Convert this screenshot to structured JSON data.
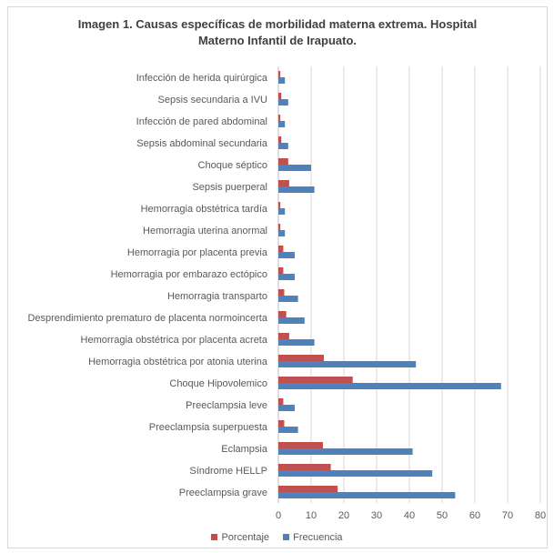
{
  "chart_data": {
    "type": "bar",
    "orientation": "horizontal",
    "title": "Imagen 1. Causas  específicas de morbilidad materna extrema. Hospital Materno Infantil de Irapuato.",
    "title_lines": [
      "Imagen 1. Causas  específicas de morbilidad materna extrema. Hospital",
      "Materno Infantil de Irapuato."
    ],
    "categories": [
      "Infección de herida quirúrgica",
      "Sepsis secundaria a IVU",
      "Infección de pared abdominal",
      "Sepsis abdominal secundaria",
      "Choque séptico",
      "Sepsis puerperal",
      "Hemorragia obstétrica tardía",
      "Hemorragia uterina anormal",
      "Hemorragia por placenta previa",
      "Hemorragia por embarazo ectópico",
      "Hemorragia transparto",
      "Desprendimiento prematuro de placenta normoincerta",
      "Hemorragia obstétrica por placenta acreta",
      "Hemorragia obstétrica por atonia uterina",
      "Choque Hipovolemico",
      "Preeclampsia leve",
      "Preeclampsia superpuesta",
      "Eclampsia",
      "Síndrome HELLP",
      "Preeclampsia grave"
    ],
    "series": [
      {
        "name": "Porcentaje",
        "color": "#c0504d",
        "values": [
          0.6,
          0.9,
          0.6,
          0.9,
          3.0,
          3.3,
          0.6,
          0.6,
          1.5,
          1.5,
          1.8,
          2.4,
          3.3,
          13.9,
          22.7,
          1.5,
          1.8,
          13.6,
          16.0,
          18.1
        ]
      },
      {
        "name": "Frecuencia",
        "color": "#4f81bd",
        "values": [
          2,
          3,
          2,
          3,
          10,
          11,
          2,
          2,
          5,
          5,
          6,
          8,
          11,
          42,
          68,
          5,
          6,
          41,
          47,
          54
        ]
      }
    ],
    "x_ticks": [
      0,
      10,
      20,
      30,
      40,
      50,
      60,
      70,
      80
    ],
    "xlim": [
      0,
      80
    ],
    "grid": true,
    "legend_position": "bottom"
  }
}
